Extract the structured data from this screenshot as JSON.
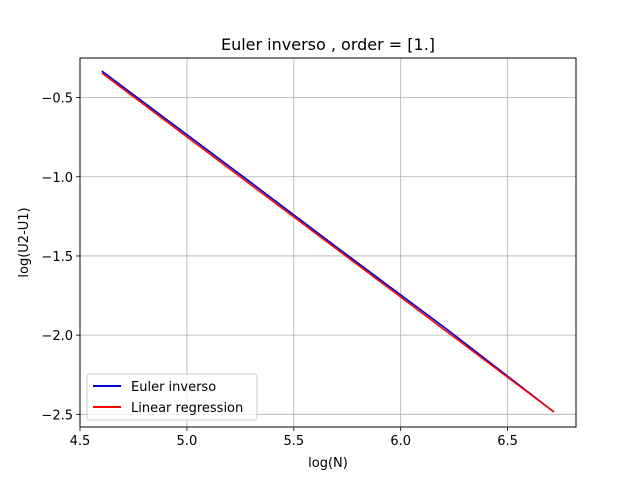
{
  "chart_data": {
    "type": "line",
    "title": "Euler inverso , order = [1.]",
    "xlabel": "log(N)",
    "ylabel": "log(U2-U1)",
    "xlim": [
      4.5,
      6.82
    ],
    "ylim": [
      -2.58,
      -0.25
    ],
    "xticks": [
      4.5,
      5.0,
      5.5,
      6.0,
      6.5
    ],
    "xtick_labels": [
      "4.5",
      "5.0",
      "5.5",
      "6.0",
      "6.5"
    ],
    "yticks": [
      -0.5,
      -1.0,
      -1.5,
      -2.0,
      -2.5
    ],
    "ytick_labels": [
      "−0.5",
      "−1.0",
      "−1.5",
      "−2.0",
      "−2.5"
    ],
    "grid": true,
    "legend_position": "lower-left",
    "series": [
      {
        "name": "Euler inverso",
        "color": "#0000cc",
        "x": [
          4.605,
          5.298,
          5.704,
          6.215,
          6.714
        ],
        "y": [
          -0.335,
          -1.035,
          -1.448,
          -1.962,
          -2.482
        ]
      },
      {
        "name": "Linear regression",
        "color": "#ff0000",
        "x": [
          4.605,
          6.714
        ],
        "y": [
          -0.348,
          -2.482
        ]
      }
    ]
  }
}
